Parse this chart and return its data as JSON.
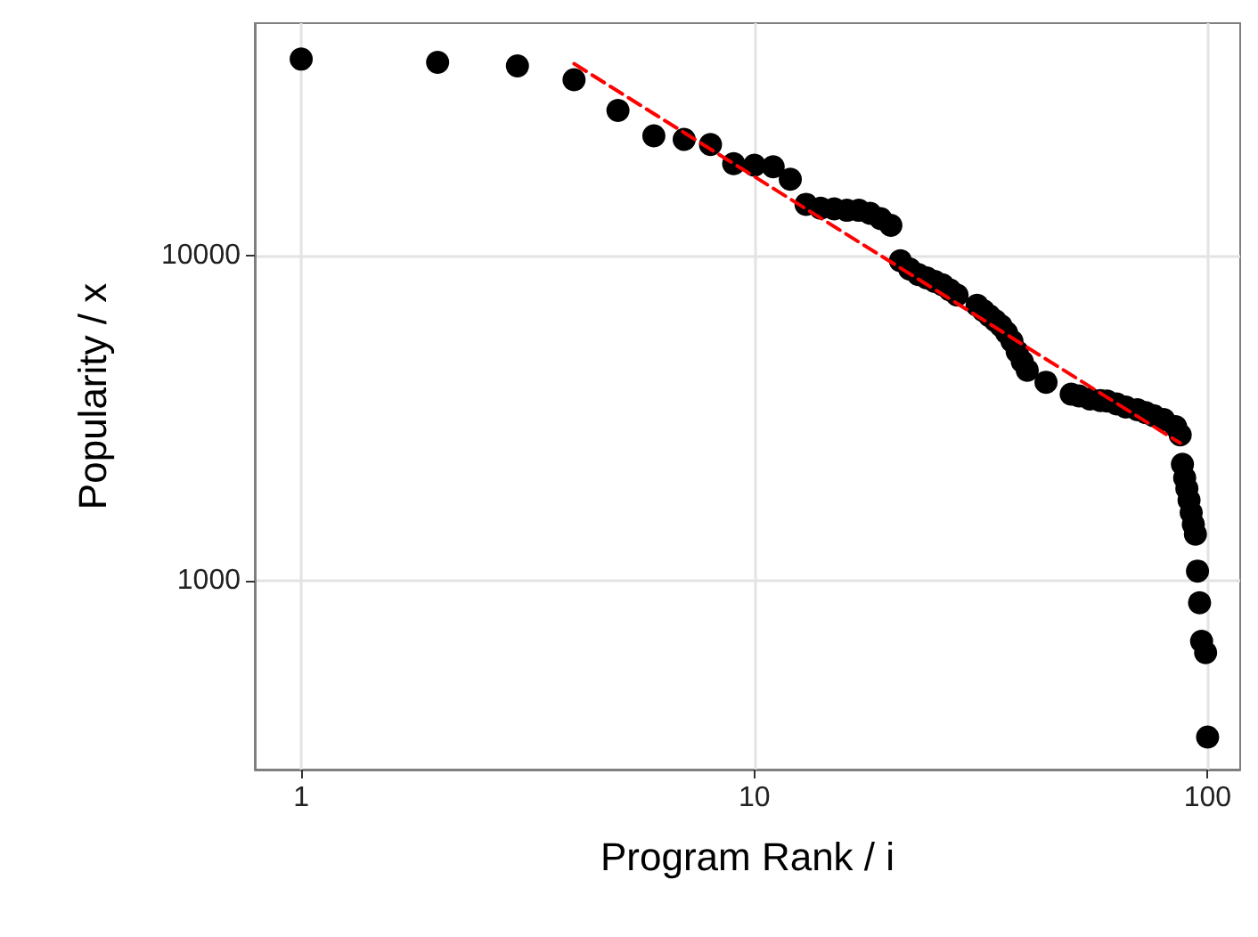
{
  "chart_data": {
    "type": "scatter",
    "xlabel": "Program Rank / i",
    "ylabel": "Popularity / x",
    "log": "xy",
    "grid": true,
    "xlim": [
      0.79,
      118
    ],
    "ylim": [
      262,
      52000
    ],
    "xticks": [
      1,
      10,
      100
    ],
    "yticks": [
      1000,
      10000
    ],
    "series": [
      {
        "color": "#000000",
        "marker": "circle",
        "x": [
          1,
          2,
          3,
          4,
          5,
          6,
          7,
          8,
          9,
          10,
          11,
          12,
          13,
          14,
          15,
          16,
          17,
          18,
          19,
          20,
          21,
          22,
          23,
          24,
          25,
          26,
          27,
          28,
          31,
          32,
          33,
          34,
          35,
          36,
          37,
          38,
          39,
          40,
          44,
          50,
          52,
          55,
          58,
          60,
          63,
          66,
          70,
          73,
          76,
          80,
          85,
          87,
          88,
          89,
          90,
          91,
          92,
          93,
          94,
          95,
          96,
          97,
          99,
          100
        ],
        "values": [
          40300,
          39400,
          38400,
          34800,
          28000,
          23400,
          22800,
          22000,
          19200,
          19000,
          18800,
          17200,
          14400,
          14000,
          13950,
          13800,
          13800,
          13500,
          13000,
          12400,
          9650,
          9100,
          8750,
          8550,
          8330,
          8140,
          7850,
          7570,
          7040,
          6780,
          6540,
          6310,
          6090,
          5800,
          5460,
          5070,
          4720,
          4440,
          4080,
          3750,
          3700,
          3620,
          3580,
          3570,
          3500,
          3420,
          3360,
          3290,
          3220,
          3130,
          2980,
          2810,
          2280,
          2070,
          1920,
          1770,
          1620,
          1490,
          1390,
          1070,
          855,
          650,
          600,
          330
        ]
      },
      {
        "type": "line",
        "color": "#ff0000",
        "line_style": "dashed",
        "marker": "none",
        "x": [
          4,
          87
        ],
        "values": [
          39000,
          2650
        ]
      }
    ]
  }
}
